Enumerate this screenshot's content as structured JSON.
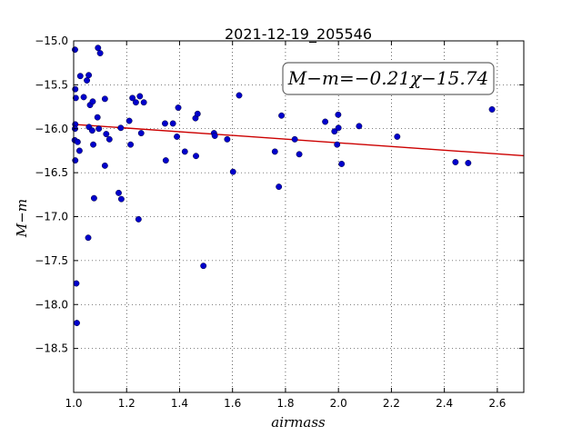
{
  "chart_data": {
    "type": "scatter",
    "title": "2021-12-19_205546",
    "xlabel": "airmass",
    "ylabel": "M−m",
    "xlim": [
      1.0,
      2.7
    ],
    "ylim": [
      -15.0,
      -19.0
    ],
    "y_inverted": true,
    "grid": true,
    "x_ticks": [
      "1.0",
      "1.2",
      "1.4",
      "1.6",
      "1.8",
      "2.0",
      "2.2",
      "2.4",
      "2.6"
    ],
    "y_ticks": [
      "−15.0",
      "−15.5",
      "−16.0",
      "−16.5",
      "−17.0",
      "−17.5",
      "−18.0",
      "−18.5"
    ],
    "annotation": "M−m=−0.21χ−15.74",
    "fit": {
      "slope": -0.21,
      "intercept": -15.74,
      "color": "#cc0000"
    },
    "point_color": "#0000cc",
    "points": [
      [
        1.005,
        -15.1
      ],
      [
        1.006,
        -15.55
      ],
      [
        1.008,
        -15.65
      ],
      [
        1.006,
        -15.95
      ],
      [
        1.005,
        -16.0
      ],
      [
        1.004,
        -16.13
      ],
      [
        1.006,
        -16.36
      ],
      [
        1.01,
        -17.76
      ],
      [
        1.012,
        -18.21
      ],
      [
        1.015,
        -16.15
      ],
      [
        1.025,
        -15.4
      ],
      [
        1.022,
        -16.25
      ],
      [
        1.038,
        -15.64
      ],
      [
        1.05,
        -15.45
      ],
      [
        1.057,
        -15.39
      ],
      [
        1.062,
        -15.73
      ],
      [
        1.058,
        -15.98
      ],
      [
        1.072,
        -15.69
      ],
      [
        1.07,
        -16.02
      ],
      [
        1.074,
        -16.18
      ],
      [
        1.077,
        -16.79
      ],
      [
        1.055,
        -17.24
      ],
      [
        1.092,
        -15.08
      ],
      [
        1.1,
        -15.14
      ],
      [
        1.09,
        -15.87
      ],
      [
        1.095,
        -16.0
      ],
      [
        1.118,
        -15.66
      ],
      [
        1.123,
        -16.06
      ],
      [
        1.135,
        -16.12
      ],
      [
        1.118,
        -16.42
      ],
      [
        1.17,
        -16.73
      ],
      [
        1.18,
        -16.8
      ],
      [
        1.178,
        -15.99
      ],
      [
        1.21,
        -15.91
      ],
      [
        1.215,
        -16.18
      ],
      [
        1.222,
        -15.65
      ],
      [
        1.235,
        -15.7
      ],
      [
        1.25,
        -15.63
      ],
      [
        1.265,
        -15.7
      ],
      [
        1.255,
        -16.05
      ],
      [
        1.245,
        -17.03
      ],
      [
        1.345,
        -15.94
      ],
      [
        1.375,
        -15.94
      ],
      [
        1.348,
        -16.36
      ],
      [
        1.395,
        -15.76
      ],
      [
        1.39,
        -16.09
      ],
      [
        1.42,
        -16.26
      ],
      [
        1.46,
        -15.88
      ],
      [
        1.468,
        -15.83
      ],
      [
        1.462,
        -16.31
      ],
      [
        1.49,
        -17.56
      ],
      [
        1.53,
        -16.05
      ],
      [
        1.533,
        -16.08
      ],
      [
        1.58,
        -16.12
      ],
      [
        1.602,
        -16.49
      ],
      [
        1.625,
        -15.62
      ],
      [
        1.76,
        -16.26
      ],
      [
        1.775,
        -16.66
      ],
      [
        1.785,
        -15.85
      ],
      [
        1.835,
        -16.12
      ],
      [
        1.852,
        -16.29
      ],
      [
        1.95,
        -15.92
      ],
      [
        1.985,
        -16.03
      ],
      [
        1.995,
        -16.18
      ],
      [
        1.999,
        -15.84
      ],
      [
        2.0,
        -15.99
      ],
      [
        2.012,
        -16.4
      ],
      [
        2.078,
        -15.97
      ],
      [
        2.222,
        -16.09
      ],
      [
        2.442,
        -16.38
      ],
      [
        2.49,
        -16.39
      ],
      [
        2.58,
        -15.78
      ]
    ]
  }
}
